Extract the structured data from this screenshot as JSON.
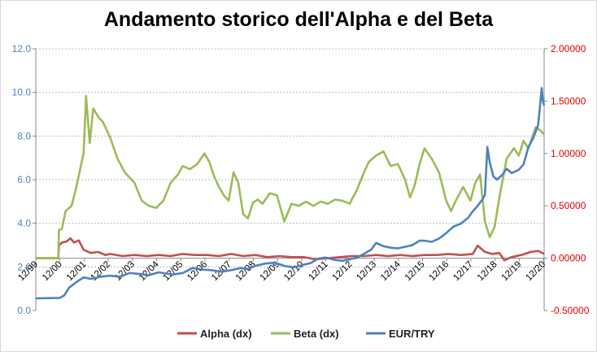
{
  "chart_data": {
    "type": "line",
    "title": "Andamento storico dell'Alpha e del Beta",
    "left_axis": {
      "min": 0.0,
      "max": 12.0,
      "step": 2.0,
      "ticks": [
        "0.0",
        "2.0",
        "4.0",
        "6.0",
        "8.0",
        "10.0",
        "12.0"
      ]
    },
    "right_axis": {
      "min": -0.5,
      "max": 2.0,
      "step": 0.5,
      "ticks": [
        "-0.50000",
        "0.00000",
        "0.50000",
        "1.00000",
        "1.50000",
        "2.00000"
      ]
    },
    "x_range": [
      1999.92,
      2020.95
    ],
    "x_ticks": [
      {
        "label": "12/99",
        "x": 1999.92
      },
      {
        "label": "12/00",
        "x": 2000.92
      },
      {
        "label": "12/01",
        "x": 2001.92
      },
      {
        "label": "12/02",
        "x": 2002.92
      },
      {
        "label": "12/03",
        "x": 2003.92
      },
      {
        "label": "12/04",
        "x": 2004.92
      },
      {
        "label": "12/05",
        "x": 2005.92
      },
      {
        "label": "12/06",
        "x": 2006.92
      },
      {
        "label": "12/07",
        "x": 2007.92
      },
      {
        "label": "12/08",
        "x": 2008.92
      },
      {
        "label": "12/09",
        "x": 2009.92
      },
      {
        "label": "12/10",
        "x": 2010.92
      },
      {
        "label": "12/11",
        "x": 2011.92
      },
      {
        "label": "12/12",
        "x": 2012.92
      },
      {
        "label": "12/13",
        "x": 2013.92
      },
      {
        "label": "12/14",
        "x": 2014.92
      },
      {
        "label": "12/15",
        "x": 2015.92
      },
      {
        "label": "12/16",
        "x": 2016.92
      },
      {
        "label": "12/17",
        "x": 2017.92
      },
      {
        "label": "12/18",
        "x": 2018.92
      },
      {
        "label": "12/19",
        "x": 2019.92
      },
      {
        "label": "12/20",
        "x": 2020.92
      }
    ],
    "grid": true,
    "legend_position": "bottom",
    "series": [
      {
        "name": "Alpha (dx)",
        "axis": "right",
        "color": "#c0504d",
        "points": [
          [
            1999.92,
            0.0
          ],
          [
            2000.85,
            0.0
          ],
          [
            2000.88,
            0.12
          ],
          [
            2001.0,
            0.15
          ],
          [
            2001.2,
            0.16
          ],
          [
            2001.35,
            0.19
          ],
          [
            2001.5,
            0.15
          ],
          [
            2001.7,
            0.17
          ],
          [
            2001.9,
            0.08
          ],
          [
            2002.2,
            0.05
          ],
          [
            2002.5,
            0.06
          ],
          [
            2002.8,
            0.03
          ],
          [
            2003.0,
            0.04
          ],
          [
            2003.5,
            0.02
          ],
          [
            2004.0,
            0.03
          ],
          [
            2004.5,
            0.02
          ],
          [
            2005.0,
            0.03
          ],
          [
            2005.5,
            0.02
          ],
          [
            2006.0,
            0.04
          ],
          [
            2006.5,
            0.03
          ],
          [
            2007.0,
            0.03
          ],
          [
            2007.5,
            0.02
          ],
          [
            2008.0,
            0.04
          ],
          [
            2008.5,
            0.02
          ],
          [
            2009.0,
            0.03
          ],
          [
            2009.5,
            0.01
          ],
          [
            2010.0,
            0.02
          ],
          [
            2010.5,
            0.01
          ],
          [
            2011.0,
            0.01
          ],
          [
            2011.5,
            -0.01
          ],
          [
            2012.0,
            0.0
          ],
          [
            2012.5,
            0.01
          ],
          [
            2013.0,
            0.02
          ],
          [
            2013.5,
            0.02
          ],
          [
            2014.0,
            0.03
          ],
          [
            2014.5,
            0.02
          ],
          [
            2015.0,
            0.03
          ],
          [
            2015.5,
            0.02
          ],
          [
            2016.0,
            0.03
          ],
          [
            2016.5,
            0.03
          ],
          [
            2017.0,
            0.04
          ],
          [
            2017.5,
            0.03
          ],
          [
            2018.0,
            0.04
          ],
          [
            2018.2,
            0.12
          ],
          [
            2018.5,
            0.06
          ],
          [
            2018.8,
            0.04
          ],
          [
            2019.1,
            0.05
          ],
          [
            2019.3,
            -0.02
          ],
          [
            2019.6,
            0.01
          ],
          [
            2020.0,
            0.03
          ],
          [
            2020.4,
            0.06
          ],
          [
            2020.7,
            0.07
          ],
          [
            2020.95,
            0.04
          ]
        ]
      },
      {
        "name": "Beta (dx)",
        "axis": "right",
        "color": "#9bbb59",
        "points": [
          [
            1999.92,
            0.0
          ],
          [
            2000.85,
            0.0
          ],
          [
            2000.88,
            0.27
          ],
          [
            2001.0,
            0.28
          ],
          [
            2001.15,
            0.45
          ],
          [
            2001.4,
            0.5
          ],
          [
            2001.6,
            0.68
          ],
          [
            2001.8,
            0.9
          ],
          [
            2001.9,
            1.0
          ],
          [
            2002.0,
            1.55
          ],
          [
            2002.15,
            1.1
          ],
          [
            2002.3,
            1.43
          ],
          [
            2002.5,
            1.35
          ],
          [
            2002.7,
            1.3
          ],
          [
            2003.0,
            1.15
          ],
          [
            2003.3,
            0.95
          ],
          [
            2003.6,
            0.82
          ],
          [
            2004.0,
            0.72
          ],
          [
            2004.3,
            0.55
          ],
          [
            2004.6,
            0.5
          ],
          [
            2004.9,
            0.48
          ],
          [
            2005.2,
            0.55
          ],
          [
            2005.5,
            0.72
          ],
          [
            2005.8,
            0.8
          ],
          [
            2006.0,
            0.88
          ],
          [
            2006.3,
            0.85
          ],
          [
            2006.6,
            0.9
          ],
          [
            2006.9,
            1.0
          ],
          [
            2007.1,
            0.92
          ],
          [
            2007.3,
            0.78
          ],
          [
            2007.5,
            0.68
          ],
          [
            2007.7,
            0.6
          ],
          [
            2007.9,
            0.55
          ],
          [
            2008.1,
            0.82
          ],
          [
            2008.3,
            0.72
          ],
          [
            2008.5,
            0.42
          ],
          [
            2008.7,
            0.38
          ],
          [
            2008.9,
            0.53
          ],
          [
            2009.1,
            0.56
          ],
          [
            2009.3,
            0.52
          ],
          [
            2009.6,
            0.62
          ],
          [
            2009.9,
            0.6
          ],
          [
            2010.2,
            0.35
          ],
          [
            2010.5,
            0.52
          ],
          [
            2010.8,
            0.5
          ],
          [
            2011.1,
            0.54
          ],
          [
            2011.4,
            0.5
          ],
          [
            2011.7,
            0.54
          ],
          [
            2012.0,
            0.52
          ],
          [
            2012.3,
            0.56
          ],
          [
            2012.6,
            0.55
          ],
          [
            2012.9,
            0.52
          ],
          [
            2013.2,
            0.65
          ],
          [
            2013.5,
            0.82
          ],
          [
            2013.7,
            0.92
          ],
          [
            2014.0,
            0.98
          ],
          [
            2014.3,
            1.02
          ],
          [
            2014.6,
            0.88
          ],
          [
            2014.9,
            0.9
          ],
          [
            2015.2,
            0.75
          ],
          [
            2015.4,
            0.58
          ],
          [
            2015.6,
            0.7
          ],
          [
            2015.8,
            0.9
          ],
          [
            2016.0,
            1.05
          ],
          [
            2016.3,
            0.95
          ],
          [
            2016.6,
            0.82
          ],
          [
            2016.9,
            0.55
          ],
          [
            2017.1,
            0.45
          ],
          [
            2017.3,
            0.55
          ],
          [
            2017.6,
            0.68
          ],
          [
            2017.9,
            0.55
          ],
          [
            2018.1,
            0.72
          ],
          [
            2018.3,
            0.8
          ],
          [
            2018.5,
            0.35
          ],
          [
            2018.7,
            0.2
          ],
          [
            2018.9,
            0.3
          ],
          [
            2019.1,
            0.58
          ],
          [
            2019.4,
            0.95
          ],
          [
            2019.7,
            1.05
          ],
          [
            2019.9,
            0.98
          ],
          [
            2020.1,
            1.12
          ],
          [
            2020.3,
            1.05
          ],
          [
            2020.6,
            1.25
          ],
          [
            2020.8,
            1.22
          ],
          [
            2020.95,
            1.18
          ]
        ]
      },
      {
        "name": "EUR/TRY",
        "axis": "left",
        "color": "#4f81bd",
        "points": [
          [
            1999.92,
            0.56
          ],
          [
            2000.5,
            0.57
          ],
          [
            2000.92,
            0.58
          ],
          [
            2001.1,
            0.7
          ],
          [
            2001.3,
            1.05
          ],
          [
            2001.6,
            1.3
          ],
          [
            2001.9,
            1.52
          ],
          [
            2002.2,
            1.45
          ],
          [
            2002.6,
            1.55
          ],
          [
            2003.0,
            1.6
          ],
          [
            2003.4,
            1.55
          ],
          [
            2003.8,
            1.72
          ],
          [
            2004.2,
            1.68
          ],
          [
            2004.6,
            1.62
          ],
          [
            2005.0,
            1.75
          ],
          [
            2005.3,
            1.7
          ],
          [
            2005.6,
            1.65
          ],
          [
            2006.0,
            1.72
          ],
          [
            2006.4,
            1.95
          ],
          [
            2006.8,
            1.88
          ],
          [
            2007.2,
            1.85
          ],
          [
            2007.6,
            1.78
          ],
          [
            2008.0,
            1.85
          ],
          [
            2008.4,
            1.95
          ],
          [
            2008.7,
            1.9
          ],
          [
            2009.0,
            2.05
          ],
          [
            2009.4,
            2.15
          ],
          [
            2009.8,
            2.2
          ],
          [
            2010.2,
            2.05
          ],
          [
            2010.6,
            1.98
          ],
          [
            2011.0,
            2.1
          ],
          [
            2011.3,
            2.18
          ],
          [
            2011.6,
            2.38
          ],
          [
            2011.9,
            2.43
          ],
          [
            2012.3,
            2.32
          ],
          [
            2012.6,
            2.28
          ],
          [
            2012.9,
            2.35
          ],
          [
            2013.2,
            2.42
          ],
          [
            2013.5,
            2.6
          ],
          [
            2013.8,
            2.8
          ],
          [
            2014.0,
            3.1
          ],
          [
            2014.3,
            2.95
          ],
          [
            2014.6,
            2.88
          ],
          [
            2014.9,
            2.85
          ],
          [
            2015.2,
            2.92
          ],
          [
            2015.5,
            3.0
          ],
          [
            2015.8,
            3.2
          ],
          [
            2016.0,
            3.2
          ],
          [
            2016.3,
            3.15
          ],
          [
            2016.6,
            3.3
          ],
          [
            2016.9,
            3.55
          ],
          [
            2017.2,
            3.85
          ],
          [
            2017.5,
            3.98
          ],
          [
            2017.8,
            4.25
          ],
          [
            2018.0,
            4.55
          ],
          [
            2018.2,
            4.8
          ],
          [
            2018.4,
            5.1
          ],
          [
            2018.5,
            5.3
          ],
          [
            2018.6,
            7.5
          ],
          [
            2018.7,
            6.8
          ],
          [
            2018.85,
            6.15
          ],
          [
            2019.0,
            6.0
          ],
          [
            2019.2,
            6.2
          ],
          [
            2019.4,
            6.5
          ],
          [
            2019.6,
            6.3
          ],
          [
            2019.9,
            6.45
          ],
          [
            2020.1,
            6.7
          ],
          [
            2020.3,
            7.5
          ],
          [
            2020.5,
            7.9
          ],
          [
            2020.7,
            8.5
          ],
          [
            2020.8,
            9.6
          ],
          [
            2020.85,
            10.2
          ],
          [
            2020.9,
            9.6
          ],
          [
            2020.95,
            9.4
          ]
        ]
      }
    ]
  }
}
